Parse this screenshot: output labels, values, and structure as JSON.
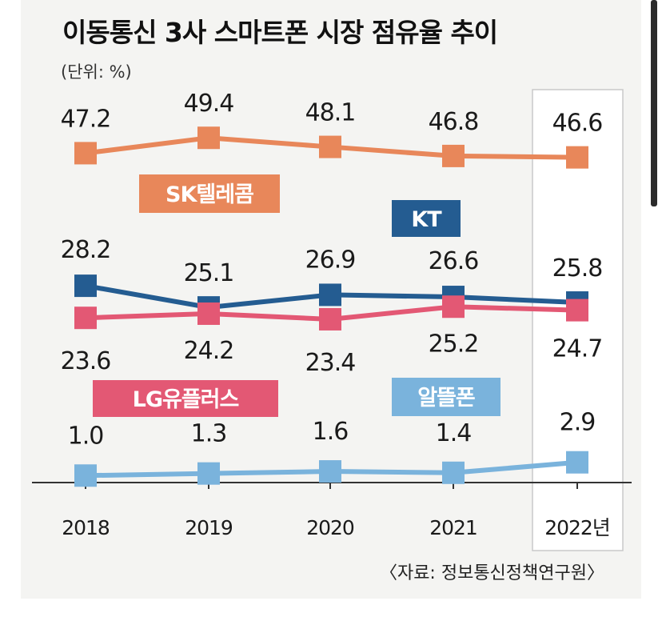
{
  "chart_data": {
    "type": "line",
    "title": "이동통신 3사 스마트폰 시장 점유율 추이",
    "unit": "(단위: %)",
    "source": "〈자료: 정보통신정책연구원〉",
    "categories": [
      "2018",
      "2019",
      "2020",
      "2021",
      "2022년"
    ],
    "ylim": [
      0,
      50
    ],
    "grid": false,
    "series": [
      {
        "name": "SK텔레콤",
        "color": "#e8875a",
        "values": [
          47.2,
          49.4,
          48.1,
          46.8,
          46.6
        ],
        "labels": [
          "47.2",
          "49.4",
          "48.1",
          "46.8",
          "46.6"
        ]
      },
      {
        "name": "KT",
        "color": "#245c91",
        "values": [
          28.2,
          25.1,
          26.9,
          26.6,
          25.8
        ],
        "labels": [
          "28.2",
          "25.1",
          "26.9",
          "26.6",
          "25.8"
        ]
      },
      {
        "name": "LG유플러스",
        "color": "#e35874",
        "values": [
          23.6,
          24.2,
          23.4,
          25.2,
          24.7
        ],
        "labels": [
          "23.6",
          "24.2",
          "23.4",
          "25.2",
          "24.7"
        ]
      },
      {
        "name": "알뜰폰",
        "color": "#7ab3dc",
        "values": [
          1.0,
          1.3,
          1.6,
          1.4,
          2.9
        ],
        "labels": [
          "1.0",
          "1.3",
          "1.6",
          "1.4",
          "2.9"
        ]
      }
    ]
  }
}
